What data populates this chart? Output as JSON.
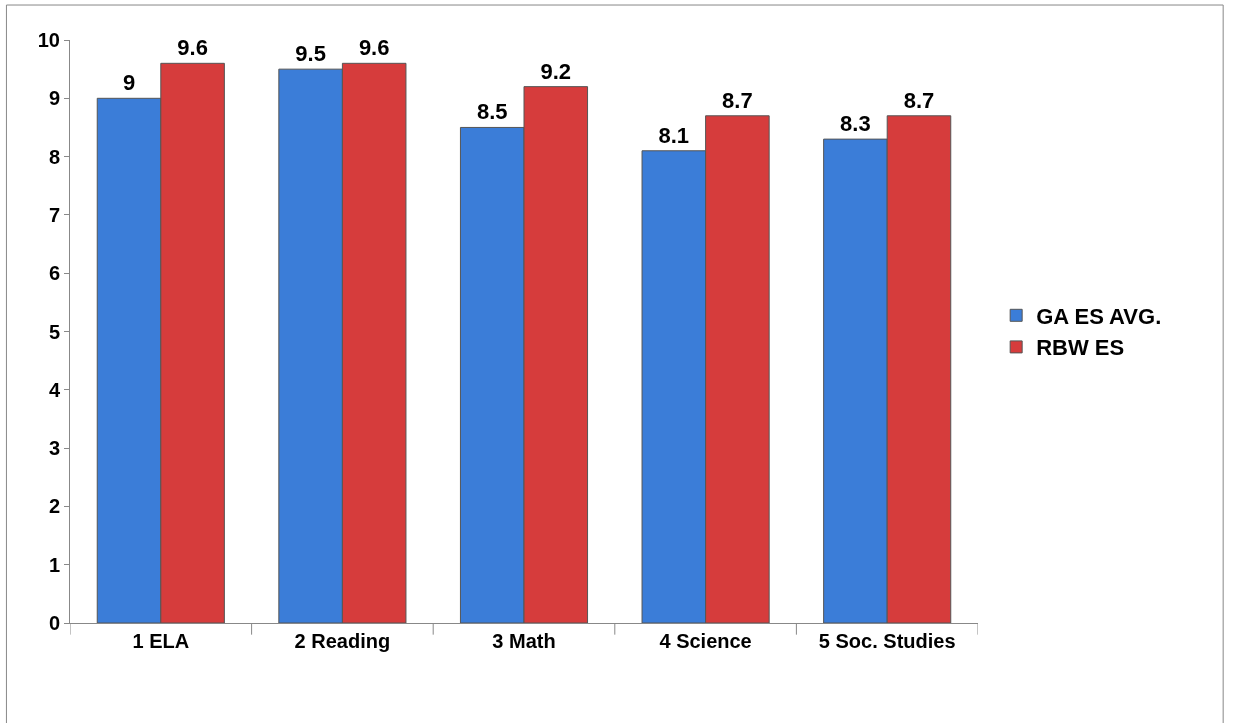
{
  "chart_data": {
    "type": "bar",
    "categories": [
      "1 ELA",
      "2 Reading",
      "3 Math",
      "4 Science",
      "5 Soc. Studies"
    ],
    "series": [
      {
        "name": "GA ES AVG.",
        "color": "#3b7dd8",
        "values": [
          9,
          9.5,
          8.5,
          8.1,
          8.3
        ]
      },
      {
        "name": "RBW ES",
        "color": "#d63c3c",
        "values": [
          9.6,
          9.6,
          9.2,
          8.7,
          8.7
        ]
      }
    ],
    "ylim": [
      0,
      10
    ],
    "yticks": [
      0,
      1,
      2,
      3,
      4,
      5,
      6,
      7,
      8,
      9,
      10
    ],
    "legend": "right",
    "data_labels": true
  }
}
